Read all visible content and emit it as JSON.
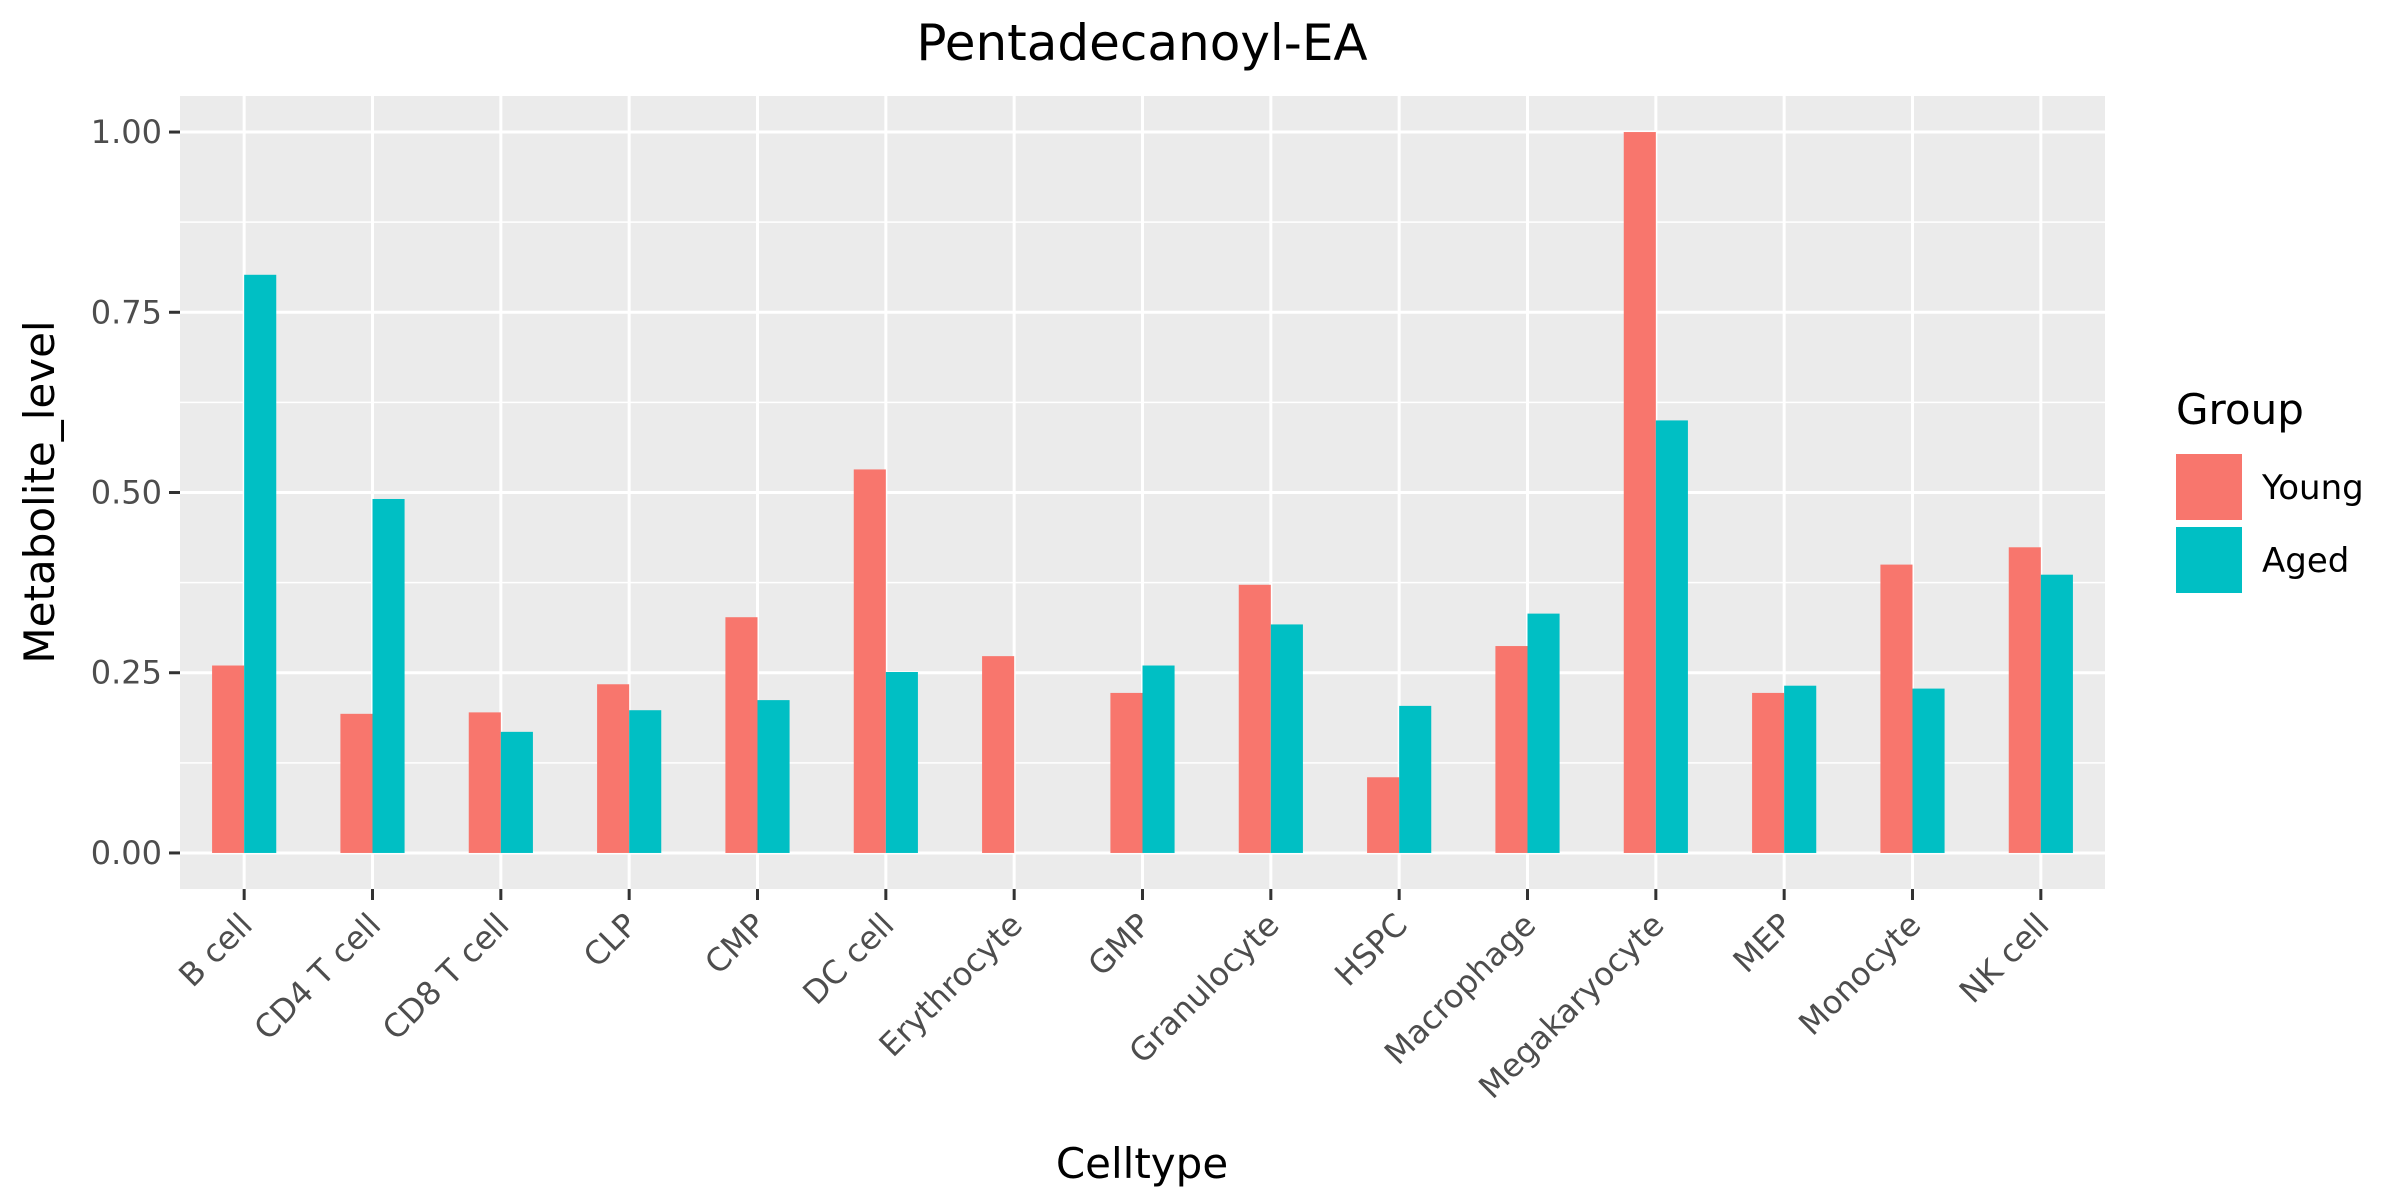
{
  "chart_data": {
    "type": "bar",
    "title": "Pentadecanoyl-EA",
    "xlabel": "Celltype",
    "ylabel": "Metabolite_level",
    "categories": [
      "B cell",
      "CD4 T cell",
      "CD8 T cell",
      "CLP",
      "CMP",
      "DC cell",
      "Erythrocyte",
      "GMP",
      "Granulocyte",
      "HSPC",
      "Macrophage",
      "Megakaryocyte",
      "MEP",
      "Monocyte",
      "NK cell"
    ],
    "series": [
      {
        "name": "Young",
        "color": "#F8766D",
        "values": [
          0.26,
          0.193,
          0.195,
          0.234,
          0.327,
          0.532,
          0.273,
          0.222,
          0.372,
          0.105,
          0.287,
          1.0,
          0.222,
          0.4,
          0.424
        ]
      },
      {
        "name": "Aged",
        "color": "#00BFC4",
        "values": [
          0.802,
          0.491,
          0.168,
          0.198,
          0.212,
          0.251,
          null,
          0.26,
          0.317,
          0.204,
          0.332,
          0.6,
          0.232,
          0.228,
          0.386
        ]
      }
    ],
    "ylim": [
      -0.05,
      1.05
    ],
    "yticks": [
      "0.00",
      "0.25",
      "0.50",
      "0.75",
      "1.00"
    ],
    "grid": true,
    "legend": {
      "title": "Group",
      "placement": "right"
    }
  }
}
